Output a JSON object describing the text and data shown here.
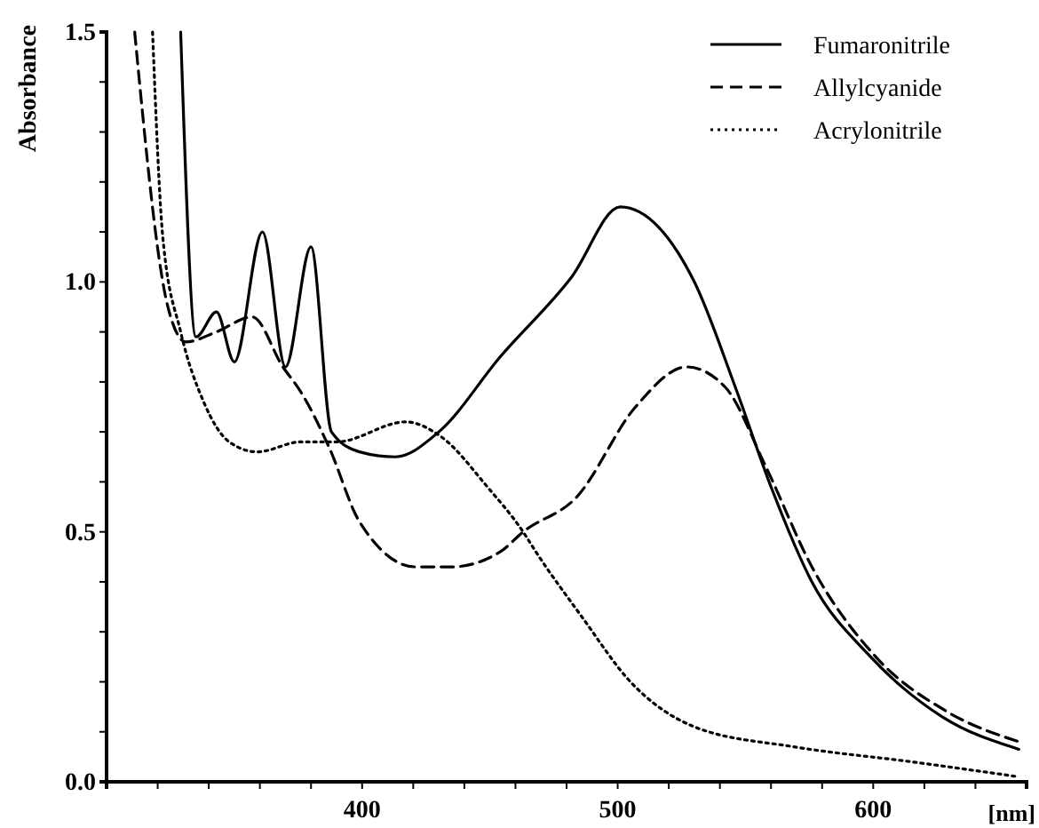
{
  "chart_data": {
    "type": "line",
    "xlabel": "[nm]",
    "ylabel": "Absorbance",
    "xlim": [
      300,
      660
    ],
    "ylim": [
      0,
      1.5
    ],
    "xticks": [
      {
        "value": 320,
        "label": null
      },
      {
        "value": 340,
        "label": null
      },
      {
        "value": 360,
        "label": null
      },
      {
        "value": 380,
        "label": null
      },
      400,
      {
        "value": 420,
        "label": null
      },
      {
        "value": 440,
        "label": null
      },
      {
        "value": 460,
        "label": null
      },
      {
        "value": 480,
        "label": null
      },
      500,
      {
        "value": 520,
        "label": null
      },
      {
        "value": 540,
        "label": null
      },
      {
        "value": 560,
        "label": null
      },
      {
        "value": 580,
        "label": null
      },
      600,
      {
        "value": 620,
        "label": null
      },
      {
        "value": 640,
        "label": null
      },
      {
        "value": 660,
        "label": null
      }
    ],
    "yticks": [
      {
        "value": 0,
        "label": "0.0"
      },
      {
        "value": 0.1,
        "label": null
      },
      {
        "value": 0.2,
        "label": null
      },
      {
        "value": 0.3,
        "label": null
      },
      {
        "value": 0.4,
        "label": null
      },
      {
        "value": 0.5,
        "label": "0.5"
      },
      {
        "value": 0.6,
        "label": null
      },
      {
        "value": 0.7,
        "label": null
      },
      {
        "value": 0.8,
        "label": null
      },
      {
        "value": 0.9,
        "label": null
      },
      {
        "value": 1,
        "label": "1.0"
      },
      {
        "value": 1.1,
        "label": null
      },
      {
        "value": 1.2,
        "label": null
      },
      {
        "value": 1.3,
        "label": null
      },
      {
        "value": 1.4,
        "label": null
      },
      {
        "value": 1.5,
        "label": "1.5"
      }
    ],
    "grid": false,
    "legend": "top right",
    "marker": "none",
    "series": [
      {
        "name": "Fumaronitrile",
        "color": "#000000",
        "line_style": "solid",
        "x": [
          329,
          335,
          343,
          350,
          361,
          370,
          380,
          388,
          399,
          413,
          430,
          454,
          482,
          501,
          530,
          546,
          560,
          576,
          599,
          627,
          657
        ],
        "values": [
          1.5,
          0.89,
          0.94,
          0.84,
          1.1,
          0.83,
          1.07,
          0.7,
          0.66,
          0.65,
          0.7,
          0.85,
          1.01,
          1.15,
          1.0,
          0.79,
          0.59,
          0.4,
          0.25,
          0.13,
          0.065
        ]
      },
      {
        "name": "Allylcyanide",
        "color": "#000000",
        "line_style": "dashed",
        "x": [
          311,
          324,
          331,
          343,
          357,
          369,
          376,
          387,
          399,
          421,
          435,
          454,
          463,
          484,
          507,
          527,
          542,
          558,
          576,
          601,
          629,
          657
        ],
        "values": [
          1.5,
          0.95,
          0.88,
          0.9,
          0.93,
          0.83,
          0.78,
          0.67,
          0.52,
          0.43,
          0.43,
          0.46,
          0.5,
          0.57,
          0.75,
          0.83,
          0.79,
          0.63,
          0.43,
          0.25,
          0.14,
          0.08
        ]
      },
      {
        "name": "Acrylonitrile",
        "color": "#000000",
        "line_style": "dotted",
        "x": [
          318,
          322,
          329,
          338,
          348,
          359,
          376,
          390,
          417,
          431,
          449,
          463,
          468,
          486,
          505,
          530,
          569,
          615,
          657
        ],
        "values": [
          1.5,
          1.09,
          0.9,
          0.76,
          0.68,
          0.66,
          0.68,
          0.68,
          0.72,
          0.69,
          0.59,
          0.5,
          0.46,
          0.33,
          0.2,
          0.11,
          0.07,
          0.04,
          0.01
        ]
      }
    ]
  }
}
